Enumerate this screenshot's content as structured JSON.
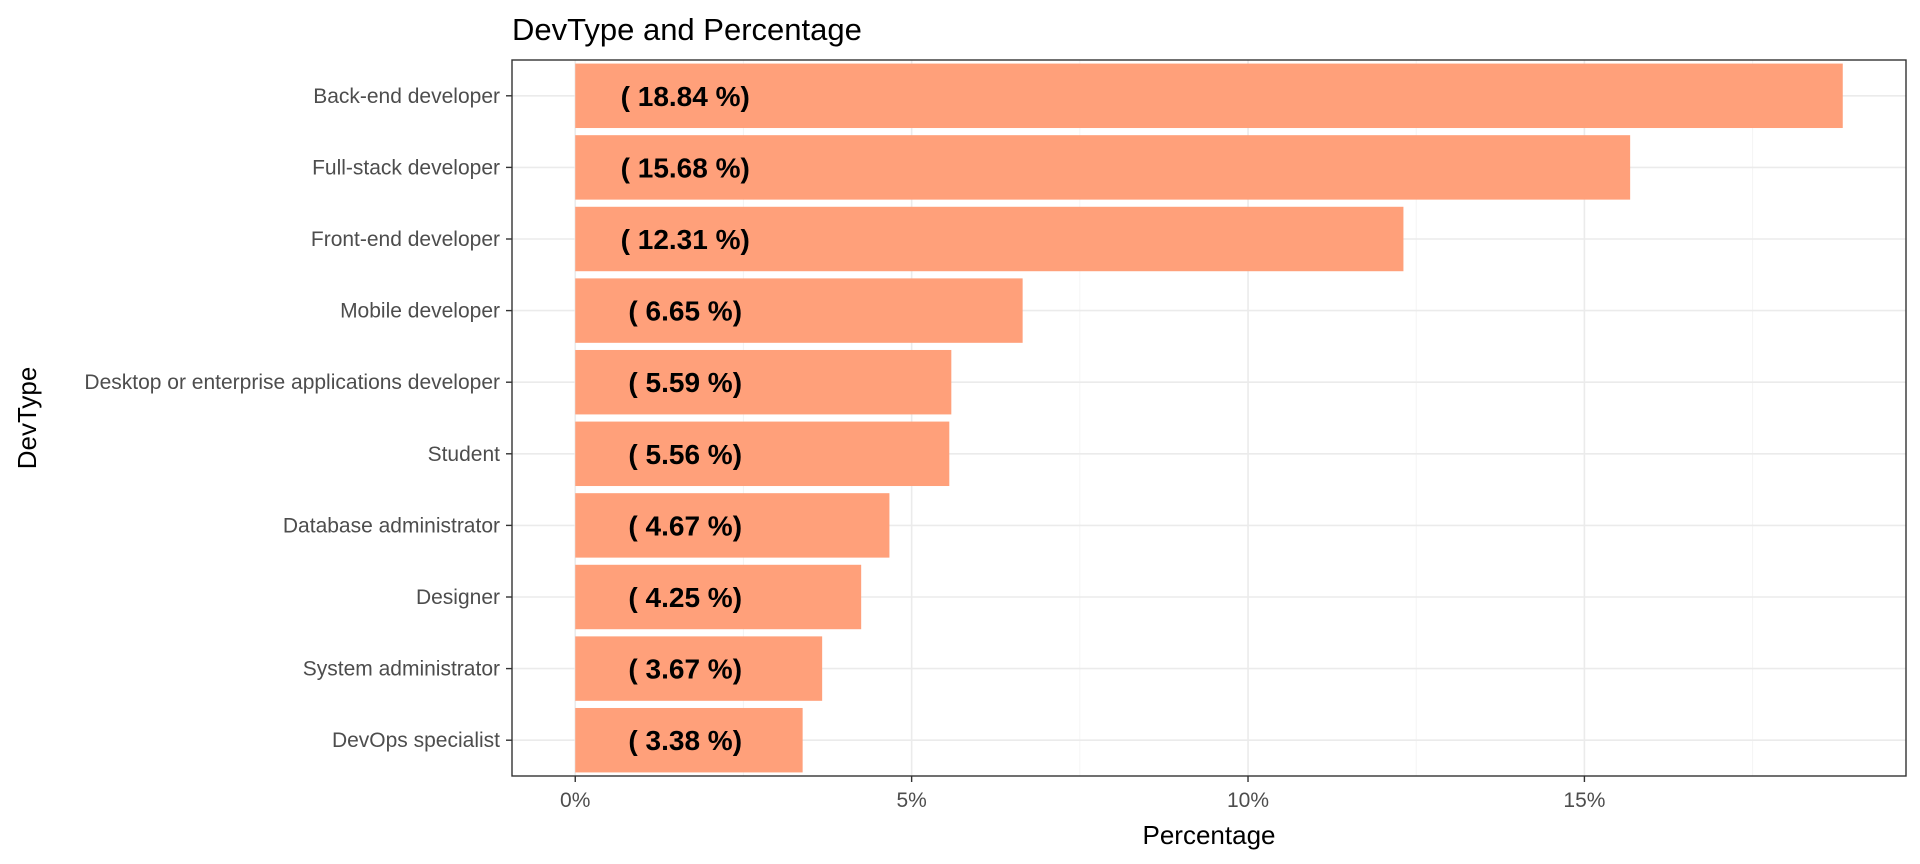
{
  "chart_data": {
    "type": "bar",
    "orientation": "horizontal",
    "title": "DevType and Percentage",
    "xlabel": "Percentage",
    "ylabel": "DevType",
    "categories": [
      "Back-end developer",
      "Full-stack developer",
      "Front-end developer",
      "Mobile developer",
      "Desktop or enterprise applications developer",
      "Student",
      "Database administrator",
      "Designer",
      "System administrator",
      "DevOps specialist"
    ],
    "values": [
      18.84,
      15.68,
      12.31,
      6.65,
      5.59,
      5.56,
      4.67,
      4.25,
      3.67,
      3.38
    ],
    "data_labels": [
      "( 18.84 %)",
      "( 15.68 %)",
      "( 12.31 %)",
      "( 6.65 %)",
      "( 5.59 %)",
      "( 5.56 %)",
      "( 4.67 %)",
      "( 4.25 %)",
      "( 3.67 %)",
      "( 3.38 %)"
    ],
    "x_ticks": [
      0,
      5,
      10,
      15
    ],
    "x_tick_labels": [
      "0%",
      "5%",
      "10%",
      "15%"
    ],
    "xlim": [
      -0.94,
      19.78
    ],
    "bar_color": "#ffa07a",
    "grid": true,
    "legend": "none"
  }
}
